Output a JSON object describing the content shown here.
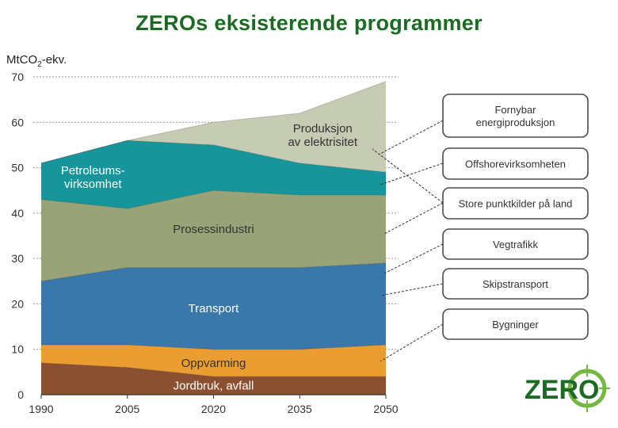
{
  "title": "ZEROs eksisterende programmer",
  "logo_text": "ZERO",
  "colors": {
    "title": "#1b6b24",
    "logo": "#1b6b24",
    "logo_ring": "#74b843"
  },
  "chart_data": {
    "type": "area",
    "stacked": true,
    "ylabel": "MtCO2-ekv.",
    "ylabel_main": "MtCO",
    "ylabel_sub": "2",
    "ylabel_tail": "-ekv.",
    "x": [
      1990,
      2005,
      2020,
      2035,
      2050
    ],
    "x_tick_labels": [
      "1990",
      "2005",
      "2020",
      "2035",
      "2050"
    ],
    "ylim": [
      0,
      70
    ],
    "y_ticks": [
      0,
      10,
      20,
      30,
      40,
      50,
      60,
      70
    ],
    "y_tick_labels": [
      "0",
      "10",
      "20",
      "30",
      "40",
      "50",
      "60",
      "70"
    ],
    "grid": true,
    "series": [
      {
        "key": "jordbruk",
        "label_lines": [
          "Jordbruk, avfall"
        ],
        "color": "#8b4f31",
        "text_style": "light",
        "values": [
          7,
          6,
          4,
          4,
          4
        ]
      },
      {
        "key": "oppvarming",
        "label_lines": [
          "Oppvarming"
        ],
        "color": "#eb9d32",
        "text_style": "dark",
        "values": [
          4,
          5,
          6,
          6,
          7
        ]
      },
      {
        "key": "transport",
        "label_lines": [
          "Transport"
        ],
        "color": "#3a77aa",
        "text_style": "light",
        "values": [
          14,
          17,
          18,
          18,
          18
        ]
      },
      {
        "key": "prosess",
        "label_lines": [
          "Prosessindustri"
        ],
        "color": "#98a377",
        "text_style": "dark",
        "values": [
          18,
          13,
          17,
          16,
          15
        ]
      },
      {
        "key": "petroleum",
        "label_lines": [
          "Petroleums-",
          "virksomhet"
        ],
        "color": "#16959a",
        "text_style": "light",
        "values": [
          8,
          15,
          10,
          7,
          5
        ]
      },
      {
        "key": "elektrisitet",
        "label_lines": [
          "Produksjon",
          "av elektrisitet"
        ],
        "color": "#c6cbb3",
        "text_style": "dark",
        "values": [
          0,
          0,
          5,
          11,
          20
        ]
      }
    ],
    "legend_entries": [
      {
        "lines": [
          "Fornybar",
          "energiproduksjon"
        ]
      },
      {
        "lines": [
          "Offshorevirksomheten"
        ]
      },
      {
        "lines": [
          "Store punktkilder på land"
        ]
      },
      {
        "lines": [
          "Vegtrafikk"
        ]
      },
      {
        "lines": [
          "Skipstransport"
        ]
      },
      {
        "lines": [
          "Bygninger"
        ]
      }
    ],
    "legend_placement": "right"
  }
}
